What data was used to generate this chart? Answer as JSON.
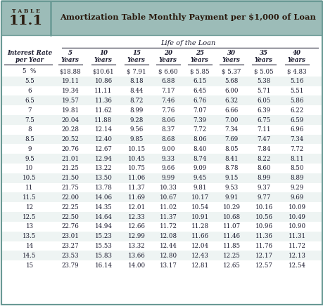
{
  "table_num": "11.1",
  "table_label": "TABLE",
  "title": "Amortization Table Monthly Payment per $1,000 of Loan",
  "subheader": "Life of the Loan",
  "col_headers_line1": [
    "5",
    "10",
    "15",
    "20",
    "25",
    "30",
    "35",
    "40"
  ],
  "row_header_line1": "Interest Rate",
  "row_header_line2": "per Year",
  "rates": [
    "5  %",
    "5.5",
    "6",
    "6.5",
    "7",
    "7.5",
    "8",
    "8.5",
    "9",
    "9.5",
    "10",
    "10.5",
    "11",
    "11.5",
    "12",
    "12.5",
    "13",
    "13.5",
    "14",
    "14.5",
    "15"
  ],
  "data": [
    [
      "$18.88",
      "$10.61",
      "$ 7.91",
      "$ 6.60",
      "$ 5.85",
      "$ 5.37",
      "$ 5.05",
      "$ 4.83"
    ],
    [
      "19.11",
      "10.86",
      "8.18",
      "6.88",
      "6.15",
      "5.68",
      "5.38",
      "5.16"
    ],
    [
      "19.34",
      "11.11",
      "8.44",
      "7.17",
      "6.45",
      "6.00",
      "5.71",
      "5.51"
    ],
    [
      "19.57",
      "11.36",
      "8.72",
      "7.46",
      "6.76",
      "6.32",
      "6.05",
      "5.86"
    ],
    [
      "19.81",
      "11.62",
      "8.99",
      "7.76",
      "7.07",
      "6.66",
      "6.39",
      "6.22"
    ],
    [
      "20.04",
      "11.88",
      "9.28",
      "8.06",
      "7.39",
      "7.00",
      "6.75",
      "6.59"
    ],
    [
      "20.28",
      "12.14",
      "9.56",
      "8.37",
      "7.72",
      "7.34",
      "7.11",
      "6.96"
    ],
    [
      "20.52",
      "12.40",
      "9.85",
      "8.68",
      "8.06",
      "7.69",
      "7.47",
      "7.34"
    ],
    [
      "20.76",
      "12.67",
      "10.15",
      "9.00",
      "8.40",
      "8.05",
      "7.84",
      "7.72"
    ],
    [
      "21.01",
      "12.94",
      "10.45",
      "9.33",
      "8.74",
      "8.41",
      "8.22",
      "8.11"
    ],
    [
      "21.25",
      "13.22",
      "10.75",
      "9.66",
      "9.09",
      "8.78",
      "8.60",
      "8.50"
    ],
    [
      "21.50",
      "13.50",
      "11.06",
      "9.99",
      "9.45",
      "9.15",
      "8.99",
      "8.89"
    ],
    [
      "21.75",
      "13.78",
      "11.37",
      "10.33",
      "9.81",
      "9.53",
      "9.37",
      "9.29"
    ],
    [
      "22.00",
      "14.06",
      "11.69",
      "10.67",
      "10.17",
      "9.91",
      "9.77",
      "9.69"
    ],
    [
      "22.25",
      "14.35",
      "12.01",
      "11.02",
      "10.54",
      "10.29",
      "10.16",
      "10.09"
    ],
    [
      "22.50",
      "14.64",
      "12.33",
      "11.37",
      "10.91",
      "10.68",
      "10.56",
      "10.49"
    ],
    [
      "22.76",
      "14.94",
      "12.66",
      "11.72",
      "11.28",
      "11.07",
      "10.96",
      "10.90"
    ],
    [
      "23.01",
      "15.23",
      "12.99",
      "12.08",
      "11.66",
      "11.46",
      "11.36",
      "11.31"
    ],
    [
      "23.27",
      "15.53",
      "13.32",
      "12.44",
      "12.04",
      "11.85",
      "11.76",
      "11.72"
    ],
    [
      "23.53",
      "15.83",
      "13.66",
      "12.80",
      "12.43",
      "12.25",
      "12.17",
      "12.13"
    ],
    [
      "23.79",
      "16.14",
      "14.00",
      "13.17",
      "12.81",
      "12.65",
      "12.57",
      "12.54"
    ]
  ],
  "header_bg": "#9cbcb8",
  "divider_color": "#6a9a95",
  "border_color": "#6a9a95",
  "title_color": "#2a1a0e",
  "body_color": "#1a1a2e",
  "row_bg_even": "#ffffff",
  "row_bg_odd": "#eef4f3"
}
